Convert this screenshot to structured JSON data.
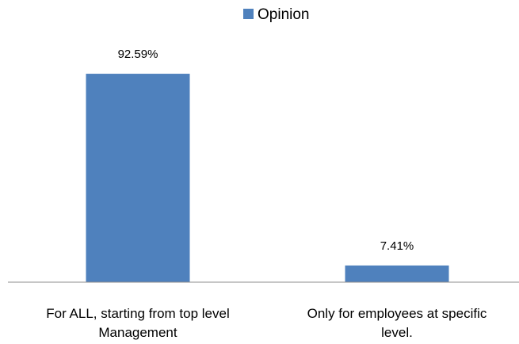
{
  "chart_data": {
    "type": "bar",
    "categories": [
      [
        "For ALL, starting from top level",
        "Management"
      ],
      [
        "Only for employees at specific",
        "level."
      ]
    ],
    "series": [
      {
        "name": "Opinion",
        "color": "#4f81bd",
        "values": [
          92.59,
          7.41
        ],
        "labels": [
          "92.59%",
          "7.41%"
        ]
      }
    ],
    "ylim": [
      0,
      100
    ],
    "unit": "%",
    "grid": false,
    "legend": "top-center"
  }
}
